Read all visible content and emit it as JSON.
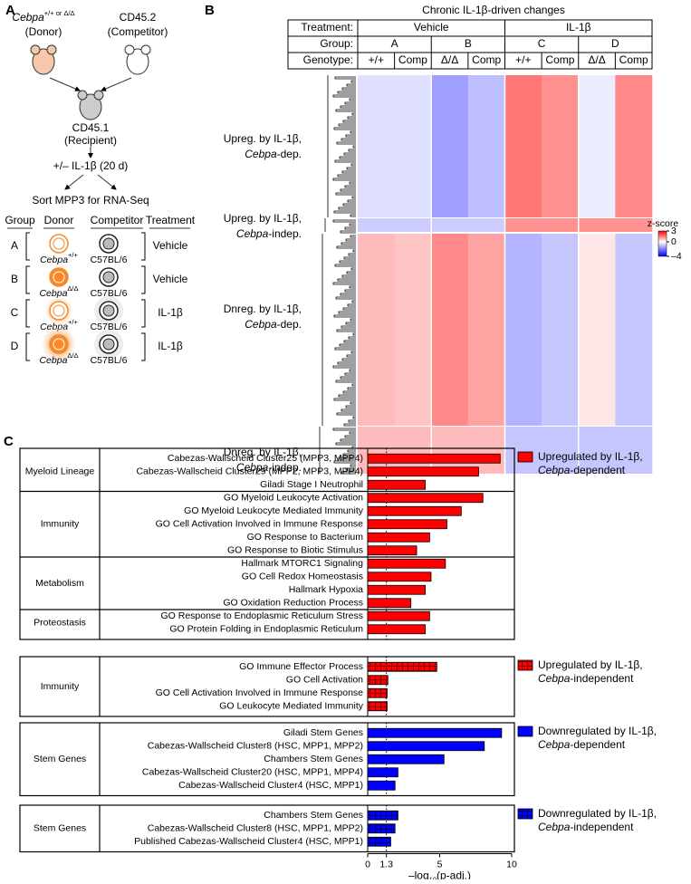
{
  "panel_labels": [
    "A",
    "B",
    "C"
  ],
  "diagram": {
    "donor": {
      "gene": "Cebpa",
      "sup": "+/+ or Δ/Δ",
      "role": "(Donor)"
    },
    "competitor": {
      "name": "CD45.2",
      "role": "(Competitor)"
    },
    "recipient": {
      "name": "CD45.1",
      "role": "(Recipient)"
    },
    "treatment_step": "+/– IL-1β (20 d)",
    "sort_step": "Sort MPP3 for RNA-Seq",
    "table_headers": [
      "Group",
      "Donor",
      "Competitor",
      "Treatment"
    ],
    "rows": [
      {
        "group": "A",
        "gene": "Cebpa",
        "genotype": "+/+",
        "competitor": "C57BL/6",
        "treatment": "Vehicle"
      },
      {
        "group": "B",
        "gene": "Cebpa",
        "genotype": "Δ/Δ",
        "competitor": "C57BL/6",
        "treatment": "Vehicle"
      },
      {
        "group": "C",
        "gene": "Cebpa",
        "genotype": "+/+",
        "competitor": "C57BL/6",
        "treatment": "IL-1β"
      },
      {
        "group": "D",
        "gene": "Cebpa",
        "genotype": "Δ/Δ",
        "competitor": "C57BL/6",
        "treatment": "IL-1β"
      }
    ]
  },
  "chart_data": [
    {
      "type": "heatmap",
      "title": "Chronic IL-1β-driven changes",
      "header_labels": {
        "treatment": "Treatment:",
        "group": "Group:",
        "genotype": "Genotype:"
      },
      "treatments": [
        "Vehicle",
        "IL-1β"
      ],
      "groups": [
        "A",
        "B",
        "C",
        "D"
      ],
      "genotypes": [
        "+/+",
        "Comp",
        "Δ/Δ",
        "Comp",
        "+/+",
        "Comp",
        "Δ/Δ",
        "Comp"
      ],
      "clusters": [
        {
          "label": "Upreg. by IL-1β,",
          "gene": "Cebpa",
          "suffix": "-dep.",
          "values": [
            -0.5,
            -0.5,
            -1.5,
            -1.0,
            1.6,
            1.3,
            -0.3,
            1.4
          ]
        },
        {
          "label": "Upreg. by IL-1β,",
          "gene": "Cebpa",
          "suffix": "-indep.",
          "values": [
            -0.8,
            -0.8,
            -0.8,
            -0.8,
            1.3,
            1.3,
            1.3,
            1.3
          ]
        },
        {
          "label": "Dnreg. by IL-1β,",
          "gene": "Cebpa",
          "suffix": "-dep.",
          "values": [
            0.8,
            0.7,
            1.4,
            1.1,
            -1.2,
            -0.9,
            0.3,
            -0.9
          ]
        },
        {
          "label": "Dnreg. by IL-1β,",
          "gene": "Cebpa",
          "suffix": "-indep.",
          "values": [
            0.8,
            0.8,
            0.8,
            0.8,
            -0.9,
            -0.9,
            -0.9,
            -0.9
          ]
        }
      ],
      "colorbar": {
        "label": "z-score",
        "ylim": [
          -4,
          3
        ],
        "yticks": [
          3,
          0,
          {
            "value": -4,
            "label": "–4"
          }
        ]
      }
    },
    {
      "type": "bar",
      "orientation": "horizontal",
      "xlim": [
        0,
        10
      ],
      "xticks": [
        0,
        1.3,
        5,
        10
      ],
      "x_label": {
        "main": "–log",
        "sub": "10",
        "tail": "(p-adj.)"
      },
      "panels": [
        {
          "color": "#ff0000",
          "hatch": false,
          "legend": {
            "line1": "Upregulated by IL-1β,",
            "gene": "Cebpa",
            "suffix": "-dependent"
          },
          "groups": [
            {
              "label": "Myeloid Lineage",
              "categories": [
                "Cabezas-Wallscheid Cluster25 (MPP3, MPP4)",
                "Cabezas-Wallscheid Cluster29 (MPP2, MPP3, MPP4)",
                "Giladi Stage I Neutrophil"
              ],
              "values": [
                9.2,
                7.7,
                4.0
              ]
            },
            {
              "label": "Immunity",
              "categories": [
                "GO Myeloid Leukocyte Activation",
                "GO Myeloid Leukocyte Mediated Immunity",
                "GO Cell Activation Involved in Immune Response",
                "GO Response to Bacterium",
                "GO Response to Biotic Stimulus"
              ],
              "values": [
                8.0,
                6.5,
                5.5,
                4.3,
                3.4
              ]
            },
            {
              "label": "Metabolism",
              "categories": [
                "Hallmark MTORC1 Signaling",
                "GO Cell Redox Homeostasis",
                "Hallmark Hypoxia",
                "GO Oxidation Reduction Process"
              ],
              "values": [
                5.4,
                4.4,
                4.0,
                3.0
              ]
            },
            {
              "label": "Proteostasis",
              "categories": [
                "GO Response to Endoplasmic Reticulum Stress",
                "GO Protein Folding in Endoplasmic Reticulum"
              ],
              "values": [
                4.3,
                4.0
              ]
            }
          ]
        },
        {
          "color": "#ff0000",
          "hatch": true,
          "legend": {
            "line1": "Upregulated by IL-1β,",
            "gene": "Cebpa",
            "suffix": "-independent"
          },
          "groups": [
            {
              "label": "Immunity",
              "categories": [
                "GO Immune Effector Process",
                "GO Cell Activation",
                "GO Cell Activation Involved in Immune Response",
                "GO Leukocyte Mediated Immunity"
              ],
              "values": [
                4.8,
                1.4,
                1.35,
                1.35
              ]
            }
          ]
        },
        {
          "color": "#0000ff",
          "hatch": false,
          "legend": {
            "line1": "Downregulated by IL-1β,",
            "gene": "Cebpa",
            "suffix": "-dependent"
          },
          "groups": [
            {
              "label": "Stem Genes",
              "categories": [
                "Giladi Stem Genes",
                "Cabezas-Wallscheid Cluster8 (HSC, MPP1, MPP2)",
                "Chambers Stem Genes",
                "Cabezas-Wallscheid Cluster20 (HSC, MPP1, MPP4)",
                "Cabezas-Wallscheid Cluster4 (HSC, MPP1)"
              ],
              "values": [
                9.3,
                8.1,
                5.3,
                2.1,
                1.9
              ]
            }
          ]
        },
        {
          "color": "#0000ff",
          "hatch": true,
          "legend": {
            "line1": "Downregulated by IL-1β,",
            "gene": "Cebpa",
            "suffix": "-independent"
          },
          "groups": [
            {
              "label": "Stem Genes",
              "categories": [
                "Chambers Stem Genes",
                "Cabezas-Wallscheid Cluster8 (HSC, MPP1, MPP2)",
                "Published Cabezas-Wallscheid Cluster4 (HSC, MPP1)"
              ],
              "values": [
                2.1,
                1.9,
                1.6
              ]
            }
          ]
        }
      ]
    }
  ]
}
